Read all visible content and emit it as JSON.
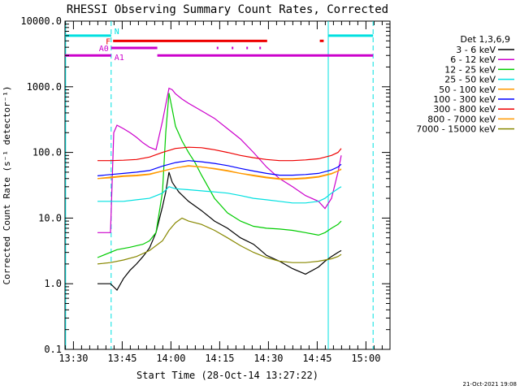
{
  "chart_data": {
    "type": "line",
    "title": "RHESSI Observing Summary Count Rates, Corrected",
    "xlabel": "Start Time (28-Oct-14 13:27:22)",
    "ylabel": "Corrected Count Rate (s⁻¹ detector⁻¹)",
    "yscale": "log",
    "ylim": [
      0.1,
      10000
    ],
    "xlim_minutes": [
      0,
      100
    ],
    "x_unit": "minutes since 13:27:22",
    "xticks": [
      {
        "label": "13:30",
        "x": 2.6
      },
      {
        "label": "13:45",
        "x": 17.6
      },
      {
        "label": "14:00",
        "x": 32.6
      },
      {
        "label": "14:15",
        "x": 47.6
      },
      {
        "label": "14:30",
        "x": 62.6
      },
      {
        "label": "14:45",
        "x": 77.6
      },
      {
        "label": "15:00",
        "x": 92.6
      }
    ],
    "yticks": [
      {
        "label": "0.1",
        "y": 0.1
      },
      {
        "label": "1.0",
        "y": 1
      },
      {
        "label": "10.0",
        "y": 10
      },
      {
        "label": "100.0",
        "y": 100
      },
      {
        "label": "1000.0",
        "y": 1000
      },
      {
        "label": "10000.0",
        "y": 10000
      }
    ],
    "legend_title": "Det 1,3,6,9",
    "legend_position": "right",
    "series": [
      {
        "name": "3 - 6 keV",
        "color": "#000000",
        "x": [
          10,
          14,
          16,
          18,
          20,
          22,
          24,
          26,
          28,
          30,
          31,
          32,
          33,
          35,
          38,
          42,
          46,
          50,
          54,
          58,
          60,
          62,
          66,
          70,
          74,
          78,
          80,
          82,
          84,
          85
        ],
        "y": [
          1,
          1,
          0.8,
          1.2,
          1.6,
          2,
          2.6,
          3.5,
          6,
          15,
          25,
          50,
          35,
          25,
          18,
          13,
          9,
          7,
          5,
          4,
          3.3,
          2.7,
          2.2,
          1.7,
          1.4,
          1.8,
          2.2,
          2.6,
          3,
          3.2
        ]
      },
      {
        "name": "6 - 12 keV",
        "color": "#cc00cc",
        "x": [
          10,
          14,
          15,
          16,
          18,
          20,
          22,
          24,
          26,
          28,
          30,
          32,
          33,
          34,
          36,
          38,
          42,
          46,
          50,
          54,
          58,
          62,
          66,
          70,
          74,
          78,
          80,
          82,
          84,
          85
        ],
        "y": [
          6,
          6,
          200,
          260,
          230,
          200,
          170,
          140,
          120,
          110,
          300,
          950,
          900,
          780,
          650,
          560,
          430,
          330,
          230,
          160,
          100,
          60,
          40,
          30,
          22,
          18,
          14,
          20,
          50,
          90
        ]
      },
      {
        "name": "12 - 25 keV",
        "color": "#00cc00",
        "x": [
          10,
          14,
          16,
          20,
          24,
          26,
          28,
          30,
          31,
          32,
          33,
          34,
          36,
          38,
          40,
          42,
          44,
          46,
          50,
          54,
          58,
          62,
          66,
          70,
          74,
          78,
          80,
          82,
          84,
          85
        ],
        "y": [
          2.5,
          3,
          3.3,
          3.6,
          4,
          4.5,
          6,
          25,
          200,
          800,
          450,
          250,
          150,
          100,
          70,
          45,
          30,
          20,
          12,
          9,
          7.5,
          7,
          6.8,
          6.5,
          6,
          5.5,
          6,
          7,
          8,
          9
        ]
      },
      {
        "name": "25 - 50 keV",
        "color": "#00e0e0",
        "x": [
          10,
          14,
          18,
          22,
          26,
          30,
          32,
          34,
          38,
          42,
          46,
          50,
          54,
          58,
          62,
          66,
          70,
          74,
          78,
          80,
          82,
          84,
          85
        ],
        "y": [
          18,
          18,
          18,
          19,
          20,
          24,
          30,
          28,
          27,
          26,
          25,
          24,
          22,
          20,
          19,
          18,
          17,
          17,
          18,
          20,
          24,
          28,
          30
        ]
      },
      {
        "name": "50 - 100 keV",
        "color": "#ff9900",
        "x": [
          10,
          14,
          18,
          22,
          26,
          30,
          34,
          38,
          42,
          46,
          50,
          54,
          58,
          62,
          66,
          70,
          74,
          78,
          82,
          84,
          85
        ],
        "y": [
          40,
          42,
          44,
          45,
          47,
          52,
          58,
          63,
          60,
          57,
          53,
          48,
          45,
          42,
          40,
          40,
          41,
          43,
          48,
          52,
          56
        ]
      },
      {
        "name": "100 - 300 keV",
        "color": "#0000ff",
        "x": [
          10,
          14,
          18,
          22,
          26,
          30,
          34,
          38,
          42,
          46,
          50,
          54,
          58,
          62,
          66,
          70,
          74,
          78,
          82,
          84,
          85
        ],
        "y": [
          44,
          46,
          48,
          50,
          53,
          62,
          70,
          75,
          72,
          68,
          63,
          57,
          52,
          48,
          45,
          45,
          46,
          48,
          54,
          60,
          66
        ]
      },
      {
        "name": "300 - 800 keV",
        "color": "#ee0000",
        "x": [
          10,
          14,
          18,
          22,
          26,
          30,
          34,
          38,
          42,
          46,
          50,
          54,
          58,
          62,
          66,
          70,
          74,
          78,
          82,
          84,
          85
        ],
        "y": [
          75,
          75,
          76,
          78,
          85,
          100,
          115,
          120,
          118,
          110,
          100,
          90,
          83,
          78,
          75,
          75,
          77,
          80,
          90,
          100,
          115
        ]
      },
      {
        "name": "800 - 7000 keV",
        "color": "#ff9900",
        "x": [
          10,
          14,
          18,
          22,
          26,
          30,
          34,
          38,
          42,
          46,
          50,
          54,
          58,
          62,
          66,
          70,
          74,
          78,
          82,
          84,
          85
        ],
        "y": [
          40,
          41,
          43,
          44,
          46,
          52,
          58,
          62,
          60,
          56,
          52,
          48,
          44,
          41,
          39,
          39,
          40,
          42,
          47,
          52,
          55
        ]
      },
      {
        "name": "7000 - 15000 keV",
        "color": "#888800",
        "x": [
          10,
          14,
          18,
          22,
          26,
          30,
          32,
          34,
          36,
          38,
          42,
          46,
          50,
          54,
          58,
          62,
          66,
          70,
          74,
          78,
          82,
          84,
          85
        ],
        "y": [
          2,
          2.1,
          2.3,
          2.6,
          3.2,
          4.5,
          6.5,
          8.5,
          10,
          9,
          8,
          6.5,
          5,
          3.8,
          3,
          2.5,
          2.2,
          2.1,
          2.1,
          2.2,
          2.4,
          2.6,
          2.8
        ]
      }
    ],
    "vertical_lines": [
      {
        "x": 0.2,
        "style": "solid",
        "color": "#00e0e0"
      },
      {
        "x": 14.2,
        "style": "dashed",
        "color": "#00e0e0"
      },
      {
        "x": 81.0,
        "style": "solid",
        "color": "#00e0e0"
      },
      {
        "x": 94.8,
        "style": "dashed",
        "color": "#00e0e0"
      }
    ],
    "flag_bars": [
      {
        "label": "N",
        "color": "#00e0e0",
        "level": 6000,
        "segments": [
          [
            0,
            14.2
          ],
          [
            81.0,
            94.8
          ]
        ]
      },
      {
        "label": "F",
        "color": "#ee0000",
        "level": 5000,
        "segments": [
          [
            14.8,
            62.2
          ],
          [
            78.4,
            79.6
          ]
        ]
      },
      {
        "label": "A0",
        "color": "#cc00cc",
        "level": 3900,
        "segments": [
          [
            14.2,
            28.4
          ],
          [
            46.7,
            47.2
          ],
          [
            51.3,
            51.8
          ],
          [
            55.8,
            56.3
          ],
          [
            59.8,
            60.3
          ]
        ]
      },
      {
        "label": "A1",
        "color": "#cc00cc",
        "level": 3000,
        "segments": [
          [
            0,
            14.2
          ],
          [
            28.4,
            94.8
          ]
        ]
      }
    ],
    "timestamp": "21-Oct-2021 19:08"
  }
}
